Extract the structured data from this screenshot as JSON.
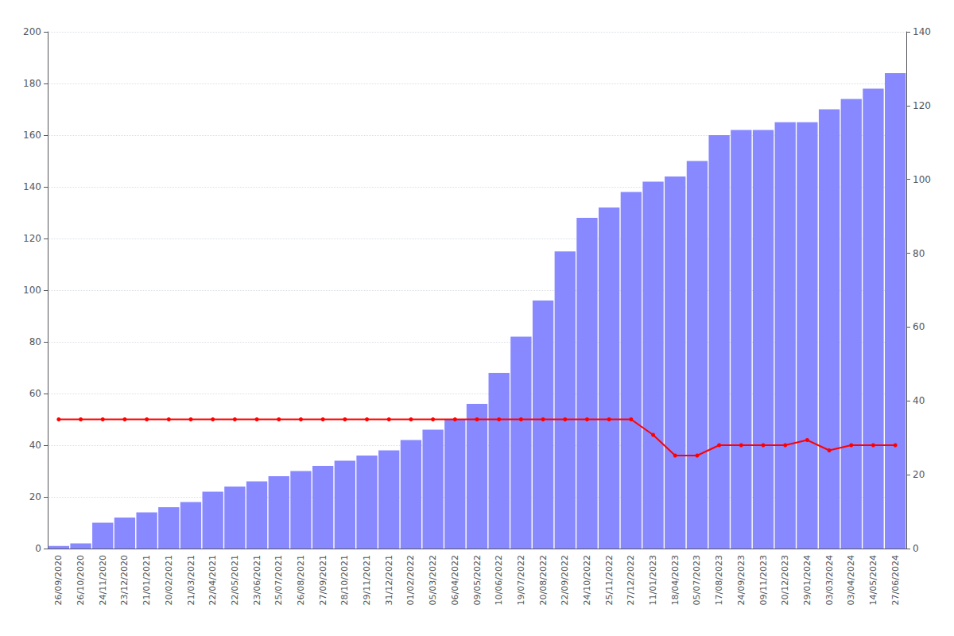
{
  "chart_data": {
    "type": "bar",
    "categories": [
      "26/09/2020",
      "26/10/2020",
      "24/11/2020",
      "23/12/2020",
      "21/01/2021",
      "20/02/2021",
      "21/03/2021",
      "22/04/2021",
      "22/05/2021",
      "23/06/2021",
      "25/07/2021",
      "26/08/2021",
      "27/09/2021",
      "28/10/2021",
      "29/11/2021",
      "31/12/2021",
      "01/02/2022",
      "05/03/2022",
      "06/04/2022",
      "09/05/2022",
      "10/06/2022",
      "19/07/2022",
      "20/08/2022",
      "22/09/2022",
      "24/10/2022",
      "25/11/2022",
      "27/12/2022",
      "11/01/2023",
      "18/04/2023",
      "05/07/2023",
      "17/08/2023",
      "24/09/2023",
      "09/11/2023",
      "20/12/2023",
      "29/01/2024",
      "03/03/2024",
      "03/04/2024",
      "14/05/2024",
      "27/06/2024"
    ],
    "series": [
      {
        "type": "bar",
        "color": "#8888ff",
        "values": [
          1,
          2,
          10,
          12,
          14,
          16,
          18,
          22,
          24,
          26,
          28,
          30,
          32,
          34,
          36,
          38,
          42,
          46,
          50,
          56,
          68,
          82,
          96,
          115,
          128,
          132,
          138,
          142,
          144,
          150,
          160,
          162,
          162,
          165,
          165,
          170,
          174,
          178,
          184
        ]
      },
      {
        "type": "line",
        "color": "#ff0000",
        "marker": "circle",
        "values": [
          50,
          50,
          50,
          50,
          50,
          50,
          50,
          50,
          50,
          50,
          50,
          50,
          50,
          50,
          50,
          50,
          50,
          50,
          50,
          50,
          50,
          50,
          50,
          50,
          50,
          50,
          50,
          44,
          36,
          36,
          40,
          40,
          40,
          40,
          42,
          38,
          40,
          40,
          40
        ]
      }
    ],
    "ylim": [
      0,
      200
    ],
    "yticks": [
      0,
      20,
      40,
      60,
      80,
      100,
      120,
      140,
      160,
      180,
      200
    ],
    "y2lim": [
      0,
      140
    ],
    "y2ticks": [
      0,
      20,
      40,
      60,
      80,
      100,
      120,
      140
    ],
    "grid": true
  }
}
